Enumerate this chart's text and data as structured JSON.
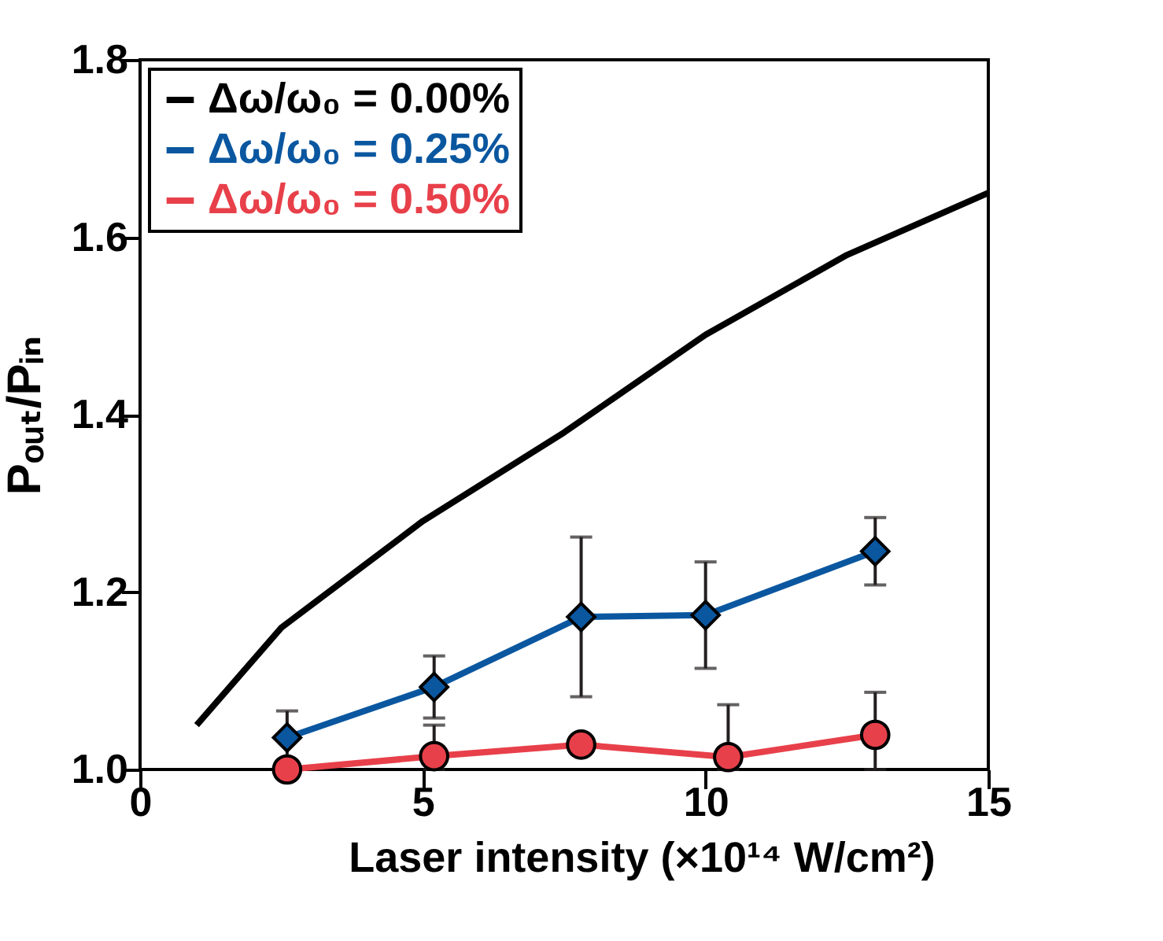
{
  "chart_data": {
    "type": "line",
    "xlabel": "Laser intensity (×10¹⁴ W/cm²)",
    "ylabel": "Pₒᵤₜ/Pᵢₙ",
    "xlim": [
      0,
      15
    ],
    "xticks": [
      0,
      5,
      10,
      15
    ],
    "ylim": [
      1.0,
      1.8
    ],
    "yticks": [
      {
        "value": 1.0,
        "label": "1.0"
      },
      1.2,
      1.4,
      1.6,
      1.8
    ],
    "legend": "top left",
    "grid": false,
    "line_style": "solid",
    "series": [
      {
        "name": "Δω/ω₀ = 0.00%",
        "color": "#000000",
        "marker": "none",
        "x": [
          1,
          2.5,
          5,
          7.5,
          10,
          12.5,
          15
        ],
        "values": [
          1.05,
          1.16,
          1.28,
          1.38,
          1.49,
          1.58,
          1.65
        ]
      },
      {
        "name": "Δω/ω₀ = 0.25%",
        "color": "#0a57a0",
        "marker": "diamond",
        "x": [
          2.6,
          5.2,
          7.8,
          10.0,
          13.0
        ],
        "values": [
          1.036,
          1.093,
          1.172,
          1.174,
          1.246
        ],
        "errors": [
          0.03,
          0.035,
          0.09,
          0.06,
          0.038
        ]
      },
      {
        "name": "Δω/ω₀ = 0.50%",
        "color": "#e8404a",
        "marker": "circle",
        "x": [
          2.6,
          5.2,
          7.8,
          10.4,
          13.0
        ],
        "values": [
          1.0,
          1.015,
          1.028,
          1.014,
          1.039
        ],
        "errors": [
          null,
          [
            1.0,
            1.05
          ],
          null,
          [
            1.0,
            1.073
          ],
          [
            1.0,
            1.087
          ]
        ]
      }
    ]
  }
}
